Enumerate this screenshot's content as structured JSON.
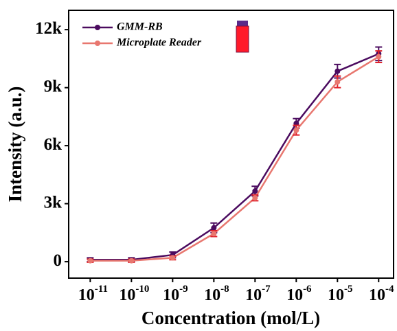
{
  "chart_data": {
    "type": "line",
    "x_label": "Concentration (mol/L)",
    "y_label": "Intensity (a.u.)",
    "x": [
      1e-11,
      1e-10,
      1e-09,
      1e-08,
      1e-07,
      1e-06,
      1e-05,
      0.0001
    ],
    "xlog": true,
    "xlim": [
      3e-12,
      0.00023
    ],
    "xticks": [
      {
        "value": 1e-11,
        "label": "10",
        "exponent": "-11"
      },
      {
        "value": 1e-10,
        "label": "10",
        "exponent": "-10"
      },
      {
        "value": 1e-09,
        "label": "10",
        "exponent": "-9"
      },
      {
        "value": 1e-08,
        "label": "10",
        "exponent": "-8"
      },
      {
        "value": 1e-07,
        "label": "10",
        "exponent": "-7"
      },
      {
        "value": 1e-06,
        "label": "10",
        "exponent": "-6"
      },
      {
        "value": 1e-05,
        "label": "10",
        "exponent": "-5"
      },
      {
        "value": 0.0001,
        "label": "10",
        "exponent": "-4"
      }
    ],
    "ylim": [
      -850,
      13000
    ],
    "yticks": [
      0,
      {
        "value": 3000,
        "label": "3k"
      },
      {
        "value": 6000,
        "label": "6k"
      },
      {
        "value": 9000,
        "label": "9k"
      },
      {
        "value": 12000,
        "label": "12k"
      }
    ],
    "legend": "top-left",
    "series": [
      {
        "name": "GMM-RB",
        "color": "#4b0b5f",
        "error_color": "#4b0b5f",
        "values": [
          100,
          100,
          350,
          1750,
          3650,
          7150,
          9850,
          10750
        ],
        "errors": [
          100,
          100,
          150,
          250,
          250,
          250,
          350,
          350
        ]
      },
      {
        "name": "Microplate Reader",
        "color": "#e8776f",
        "error_color": "#e0202a",
        "values": [
          50,
          50,
          200,
          1450,
          3300,
          6800,
          9300,
          10600
        ],
        "errors": [
          80,
          80,
          100,
          150,
          150,
          250,
          300,
          300
        ]
      }
    ]
  }
}
